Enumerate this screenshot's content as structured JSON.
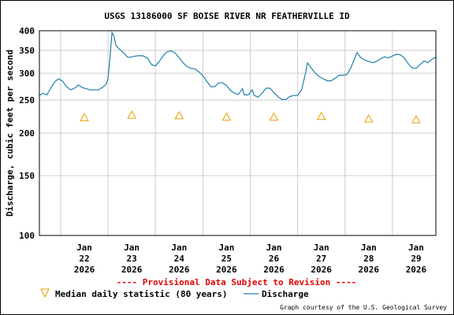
{
  "chart_data": {
    "type": "line",
    "title": "USGS 13186000 SF BOISE RIVER NR FEATHERVILLE ID",
    "ylabel": "Discharge, cubic feet per second",
    "xlabel": "",
    "y_scale": "log",
    "ylim": [
      100,
      400
    ],
    "y_ticks": [
      100,
      150,
      200,
      250,
      300,
      350,
      400
    ],
    "x_ticks": [
      {
        "line1": "Jan",
        "line2": "22",
        "line3": "2026",
        "date": "2026-01-22"
      },
      {
        "line1": "Jan",
        "line2": "23",
        "line3": "2026",
        "date": "2026-01-23"
      },
      {
        "line1": "Jan",
        "line2": "24",
        "line3": "2026",
        "date": "2026-01-24"
      },
      {
        "line1": "Jan",
        "line2": "25",
        "line3": "2026",
        "date": "2026-01-25"
      },
      {
        "line1": "Jan",
        "line2": "26",
        "line3": "2026",
        "date": "2026-01-26"
      },
      {
        "line1": "Jan",
        "line2": "27",
        "line3": "2026",
        "date": "2026-01-27"
      },
      {
        "line1": "Jan",
        "line2": "28",
        "line3": "2026",
        "date": "2026-01-28"
      },
      {
        "line1": "Jan",
        "line2": "29",
        "line3": "2026",
        "date": "2026-01-29"
      }
    ],
    "xlim": [
      "2026-01-21 13:15",
      "2026-01-29 22:00"
    ],
    "grid": true,
    "provisional_note": "---- Provisional Data Subject to Revision ----",
    "credit": "Graph courtesy of the U.S. Geological Survey",
    "series": [
      {
        "name": "Median daily statistic (80 years)",
        "kind": "marker",
        "color": "#e8a000",
        "points": [
          {
            "x": "2026-01-22 12:00",
            "y": 222
          },
          {
            "x": "2026-01-23 12:00",
            "y": 226
          },
          {
            "x": "2026-01-24 12:00",
            "y": 225
          },
          {
            "x": "2026-01-25 12:00",
            "y": 223
          },
          {
            "x": "2026-01-26 12:00",
            "y": 223
          },
          {
            "x": "2026-01-27 12:00",
            "y": 224
          },
          {
            "x": "2026-01-28 12:00",
            "y": 220
          },
          {
            "x": "2026-01-29 12:00",
            "y": 219
          }
        ]
      },
      {
        "name": "Discharge",
        "kind": "line",
        "color": "#1f7fad",
        "points": [
          {
            "x": "2026-01-21 13:15",
            "y": 258
          },
          {
            "x": "2026-01-21 15:00",
            "y": 262
          },
          {
            "x": "2026-01-21 17:00",
            "y": 259
          },
          {
            "x": "2026-01-21 19:00",
            "y": 271
          },
          {
            "x": "2026-01-21 21:00",
            "y": 283
          },
          {
            "x": "2026-01-21 23:00",
            "y": 289
          },
          {
            "x": "2026-01-22 01:00",
            "y": 284
          },
          {
            "x": "2026-01-22 03:00",
            "y": 274
          },
          {
            "x": "2026-01-22 05:00",
            "y": 268
          },
          {
            "x": "2026-01-22 07:00",
            "y": 271
          },
          {
            "x": "2026-01-22 09:00",
            "y": 277
          },
          {
            "x": "2026-01-22 11:00",
            "y": 272
          },
          {
            "x": "2026-01-22 13:00",
            "y": 270
          },
          {
            "x": "2026-01-22 15:00",
            "y": 268
          },
          {
            "x": "2026-01-22 17:00",
            "y": 268
          },
          {
            "x": "2026-01-22 19:00",
            "y": 268
          },
          {
            "x": "2026-01-22 21:00",
            "y": 272
          },
          {
            "x": "2026-01-22 23:00",
            "y": 278
          },
          {
            "x": "2026-01-23 00:00",
            "y": 290
          },
          {
            "x": "2026-01-23 01:00",
            "y": 335
          },
          {
            "x": "2026-01-23 02:00",
            "y": 395
          },
          {
            "x": "2026-01-23 03:00",
            "y": 385
          },
          {
            "x": "2026-01-23 04:00",
            "y": 362
          },
          {
            "x": "2026-01-23 06:00",
            "y": 352
          },
          {
            "x": "2026-01-23 08:00",
            "y": 344
          },
          {
            "x": "2026-01-23 10:00",
            "y": 334
          },
          {
            "x": "2026-01-23 12:00",
            "y": 335
          },
          {
            "x": "2026-01-23 14:00",
            "y": 337
          },
          {
            "x": "2026-01-23 16:00",
            "y": 338
          },
          {
            "x": "2026-01-23 18:00",
            "y": 337
          },
          {
            "x": "2026-01-23 20:00",
            "y": 332
          },
          {
            "x": "2026-01-23 22:00",
            "y": 318
          },
          {
            "x": "2026-01-24 00:00",
            "y": 315
          },
          {
            "x": "2026-01-24 02:00",
            "y": 325
          },
          {
            "x": "2026-01-24 04:00",
            "y": 338
          },
          {
            "x": "2026-01-24 06:00",
            "y": 347
          },
          {
            "x": "2026-01-24 08:00",
            "y": 349
          },
          {
            "x": "2026-01-24 10:00",
            "y": 344
          },
          {
            "x": "2026-01-24 12:00",
            "y": 333
          },
          {
            "x": "2026-01-24 14:00",
            "y": 322
          },
          {
            "x": "2026-01-24 16:00",
            "y": 314
          },
          {
            "x": "2026-01-24 18:00",
            "y": 310
          },
          {
            "x": "2026-01-24 20:00",
            "y": 309
          },
          {
            "x": "2026-01-24 22:00",
            "y": 303
          },
          {
            "x": "2026-01-25 00:00",
            "y": 295
          },
          {
            "x": "2026-01-25 02:00",
            "y": 284
          },
          {
            "x": "2026-01-25 04:00",
            "y": 274
          },
          {
            "x": "2026-01-25 06:00",
            "y": 274
          },
          {
            "x": "2026-01-25 08:00",
            "y": 281
          },
          {
            "x": "2026-01-25 10:00",
            "y": 281
          },
          {
            "x": "2026-01-25 12:00",
            "y": 276
          },
          {
            "x": "2026-01-25 14:00",
            "y": 267
          },
          {
            "x": "2026-01-25 16:00",
            "y": 262
          },
          {
            "x": "2026-01-25 18:00",
            "y": 260
          },
          {
            "x": "2026-01-25 20:00",
            "y": 270
          },
          {
            "x": "2026-01-25 21:00",
            "y": 259
          },
          {
            "x": "2026-01-25 23:00",
            "y": 259
          },
          {
            "x": "2026-01-26 01:00",
            "y": 268
          },
          {
            "x": "2026-01-26 02:00",
            "y": 258
          },
          {
            "x": "2026-01-26 04:00",
            "y": 255
          },
          {
            "x": "2026-01-26 06:00",
            "y": 262
          },
          {
            "x": "2026-01-26 08:00",
            "y": 271
          },
          {
            "x": "2026-01-26 10:00",
            "y": 271
          },
          {
            "x": "2026-01-26 12:00",
            "y": 263
          },
          {
            "x": "2026-01-26 14:00",
            "y": 256
          },
          {
            "x": "2026-01-26 16:00",
            "y": 251
          },
          {
            "x": "2026-01-26 18:00",
            "y": 251
          },
          {
            "x": "2026-01-26 20:00",
            "y": 256
          },
          {
            "x": "2026-01-26 22:00",
            "y": 258
          },
          {
            "x": "2026-01-27 00:00",
            "y": 258
          },
          {
            "x": "2026-01-27 02:00",
            "y": 268
          },
          {
            "x": "2026-01-27 04:00",
            "y": 300
          },
          {
            "x": "2026-01-27 05:00",
            "y": 322
          },
          {
            "x": "2026-01-27 07:00",
            "y": 310
          },
          {
            "x": "2026-01-27 09:00",
            "y": 300
          },
          {
            "x": "2026-01-27 11:00",
            "y": 293
          },
          {
            "x": "2026-01-27 13:00",
            "y": 289
          },
          {
            "x": "2026-01-27 15:00",
            "y": 285
          },
          {
            "x": "2026-01-27 17:00",
            "y": 285
          },
          {
            "x": "2026-01-27 19:00",
            "y": 290
          },
          {
            "x": "2026-01-27 21:00",
            "y": 296
          },
          {
            "x": "2026-01-27 23:00",
            "y": 296
          },
          {
            "x": "2026-01-28 01:00",
            "y": 297
          },
          {
            "x": "2026-01-28 03:00",
            "y": 312
          },
          {
            "x": "2026-01-28 05:00",
            "y": 333
          },
          {
            "x": "2026-01-28 06:00",
            "y": 345
          },
          {
            "x": "2026-01-28 08:00",
            "y": 333
          },
          {
            "x": "2026-01-28 10:00",
            "y": 328
          },
          {
            "x": "2026-01-28 12:00",
            "y": 325
          },
          {
            "x": "2026-01-28 14:00",
            "y": 322
          },
          {
            "x": "2026-01-28 16:00",
            "y": 325
          },
          {
            "x": "2026-01-28 18:00",
            "y": 331
          },
          {
            "x": "2026-01-28 20:00",
            "y": 335
          },
          {
            "x": "2026-01-28 22:00",
            "y": 333
          },
          {
            "x": "2026-01-29 00:00",
            "y": 337
          },
          {
            "x": "2026-01-29 02:00",
            "y": 341
          },
          {
            "x": "2026-01-29 04:00",
            "y": 340
          },
          {
            "x": "2026-01-29 06:00",
            "y": 333
          },
          {
            "x": "2026-01-29 08:00",
            "y": 320
          },
          {
            "x": "2026-01-29 10:00",
            "y": 311
          },
          {
            "x": "2026-01-29 12:00",
            "y": 310
          },
          {
            "x": "2026-01-29 14:00",
            "y": 318
          },
          {
            "x": "2026-01-29 16:00",
            "y": 326
          },
          {
            "x": "2026-01-29 18:00",
            "y": 322
          },
          {
            "x": "2026-01-29 20:00",
            "y": 330
          },
          {
            "x": "2026-01-29 22:00",
            "y": 334
          }
        ]
      }
    ]
  }
}
